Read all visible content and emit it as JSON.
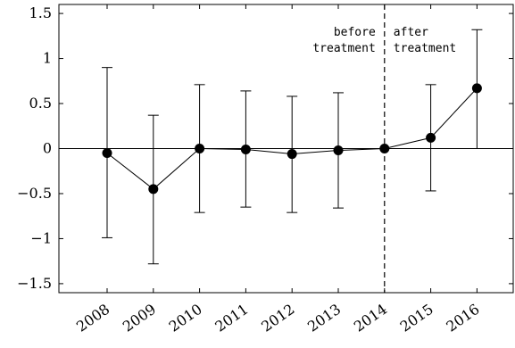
{
  "chart_data": {
    "type": "line",
    "title": "",
    "xlabel": "",
    "ylabel": "",
    "ylim": [
      -1.6,
      1.6
    ],
    "yticks": [
      -1.5,
      -1,
      -0.5,
      0,
      0.5,
      1,
      1.5
    ],
    "ytick_labels": [
      "−1.5",
      "−1",
      "−0.5",
      "0",
      "0.5",
      "1",
      "1.5"
    ],
    "categories": [
      "2008",
      "2009",
      "2010",
      "2011",
      "2012",
      "2013",
      "2014",
      "2015",
      "2016"
    ],
    "series": [
      {
        "values": [
          -0.05,
          -0.45,
          0.0,
          -0.01,
          -0.06,
          -0.02,
          0.0,
          0.12,
          0.67
        ],
        "lower": [
          -0.99,
          -1.28,
          -0.71,
          -0.65,
          -0.71,
          -0.66,
          0.0,
          -0.47,
          0.0
        ],
        "upper": [
          0.9,
          0.37,
          0.71,
          0.64,
          0.58,
          0.62,
          0.0,
          0.71,
          1.32
        ]
      }
    ],
    "zero_line": true,
    "grid": false,
    "vline_at": "2014",
    "annotations": {
      "before": [
        "before",
        "treatment"
      ],
      "after": [
        "after",
        "treatment"
      ]
    }
  }
}
